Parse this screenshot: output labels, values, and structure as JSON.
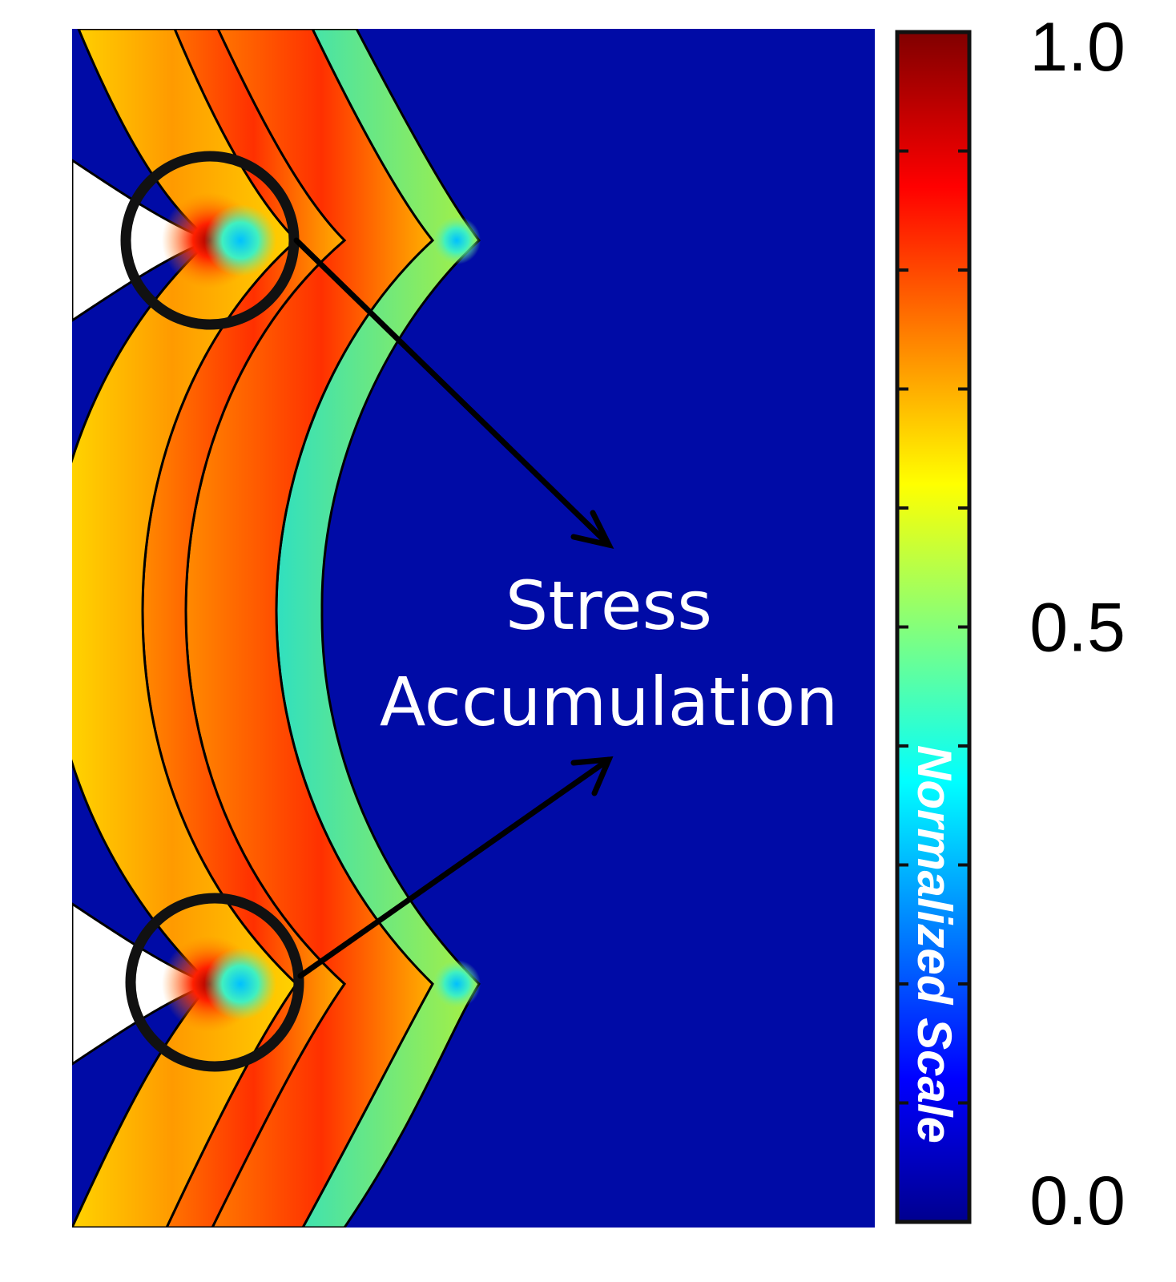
{
  "figure": {
    "annotation": {
      "line1": "Stress",
      "line2": "Accumulation"
    },
    "colorbar": {
      "title": "Normalized Scale",
      "ticks": [
        {
          "value": 1.0,
          "label": "1.0"
        },
        {
          "value": 0.5,
          "label": "0.5"
        },
        {
          "value": 0.0,
          "label": "0.0"
        }
      ],
      "minor_ticks": [
        0.1,
        0.2,
        0.3,
        0.4,
        0.5,
        0.6,
        0.7,
        0.8,
        0.9
      ],
      "colormap": [
        "#00008f",
        "#0000ff",
        "#00ffff",
        "#ffff00",
        "#ff0000",
        "#800000"
      ]
    },
    "colors": {
      "background_field": "#000ba6",
      "layer_warm": "#ffb400",
      "layer_hot": "#ff4a00",
      "layer_cool": "#7ee65a",
      "outline": "#000000",
      "text_light": "#ffffff"
    }
  }
}
